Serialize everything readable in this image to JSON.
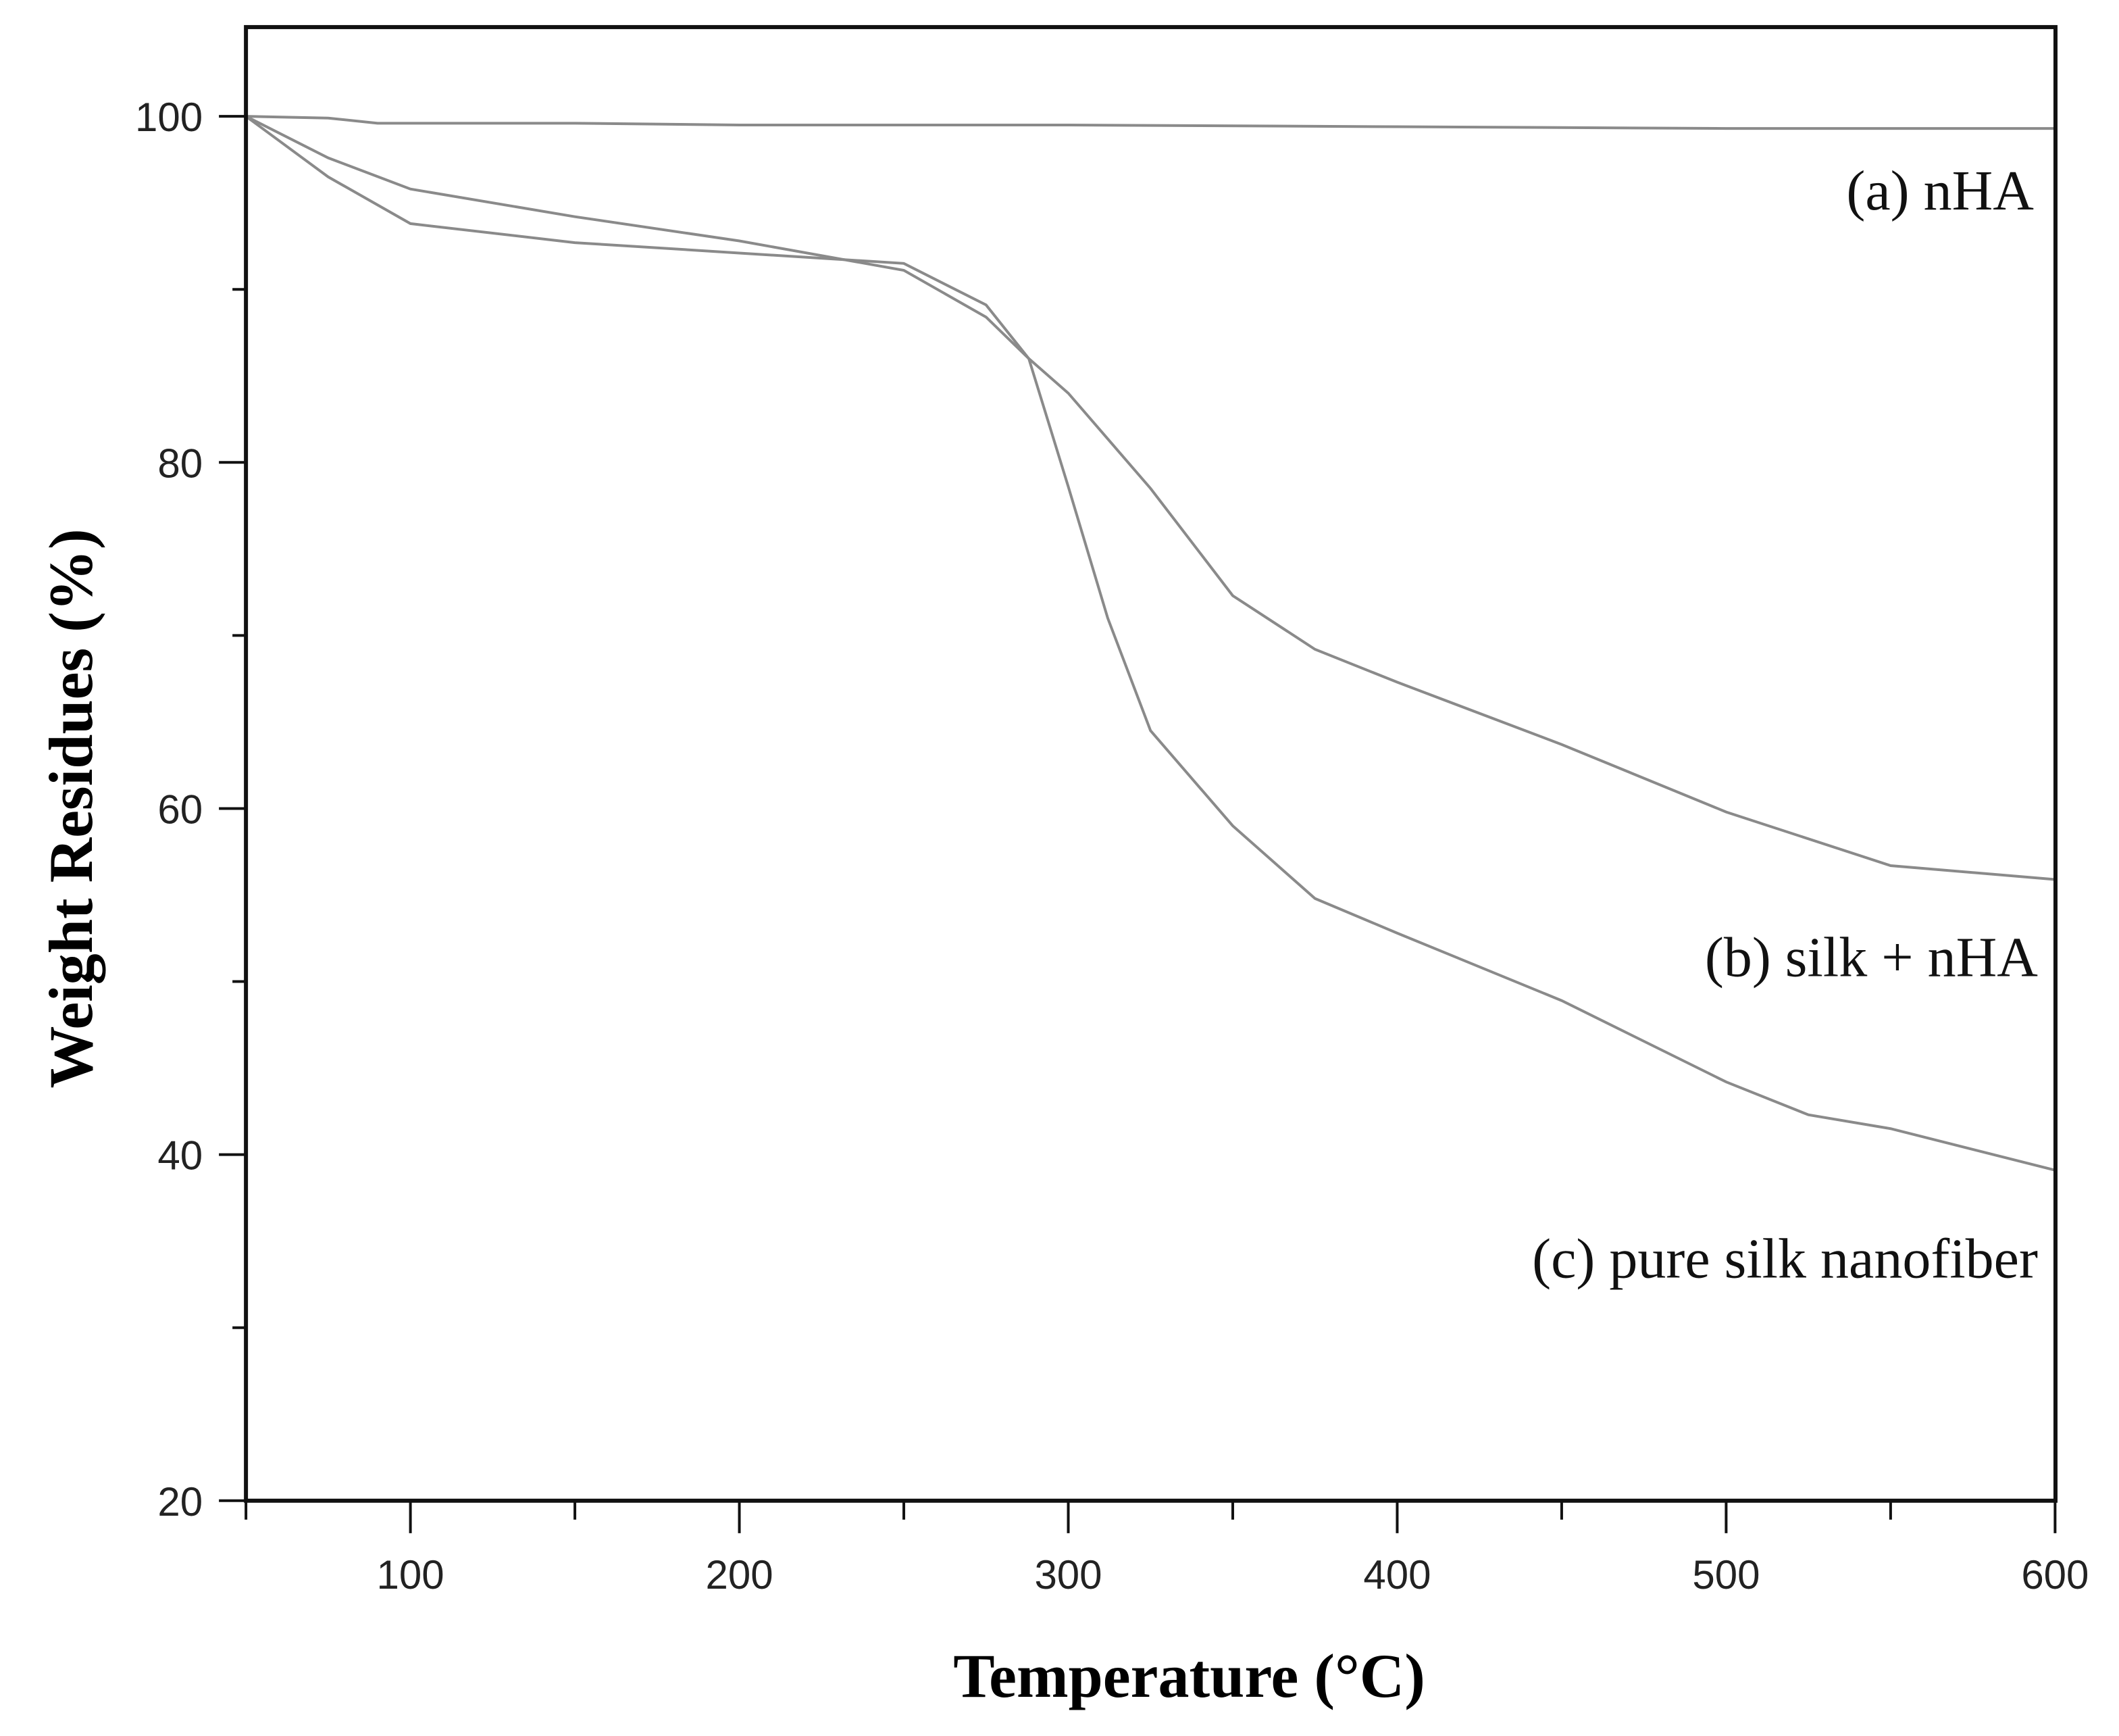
{
  "chart_data": {
    "type": "line",
    "title": "",
    "xlabel": "Temperature (°C)",
    "ylabel": "Weight Residues (%)",
    "xlim": [
      50,
      600
    ],
    "ylim": [
      20,
      105
    ],
    "x_ticks": [
      100,
      200,
      300,
      400,
      500,
      600
    ],
    "y_ticks": [
      20,
      40,
      60,
      80,
      100
    ],
    "grid": false,
    "legend_position": "inline-right",
    "line_color": "#8a8a8a",
    "series": [
      {
        "name": "(a) nHA",
        "x": [
          50,
          75,
          90,
          150,
          200,
          300,
          400,
          500,
          600
        ],
        "values": [
          100,
          99.9,
          99.6,
          99.6,
          99.5,
          99.5,
          99.4,
          99.3,
          99.3
        ]
      },
      {
        "name": "(b) silk + nHA",
        "x": [
          50,
          75,
          100,
          150,
          200,
          250,
          275,
          288,
          300,
          325,
          350,
          375,
          400,
          450,
          500,
          550,
          600
        ],
        "values": [
          100,
          97.6,
          95.8,
          94.2,
          92.8,
          91.1,
          88.4,
          86.0,
          84.0,
          78.5,
          72.3,
          69.2,
          67.3,
          63.7,
          59.8,
          56.7,
          55.9
        ]
      },
      {
        "name": "(c) pure silk nanofiber",
        "x": [
          50,
          75,
          100,
          150,
          200,
          250,
          275,
          288,
          300,
          312,
          325,
          350,
          375,
          400,
          450,
          500,
          525,
          550,
          600
        ],
        "values": [
          100,
          96.5,
          93.8,
          92.7,
          92.1,
          91.5,
          89.1,
          86.0,
          78.6,
          71.0,
          64.5,
          59.0,
          54.8,
          52.8,
          48.9,
          44.2,
          42.3,
          41.5,
          39.1
        ]
      }
    ]
  },
  "labels": {
    "series_a": "(a) nHA",
    "series_b": "(b) silk + nHA",
    "series_c": "(c) pure silk nanofiber",
    "xlabel": "Temperature (°C)",
    "ylabel": "Weight Residues (%)"
  }
}
